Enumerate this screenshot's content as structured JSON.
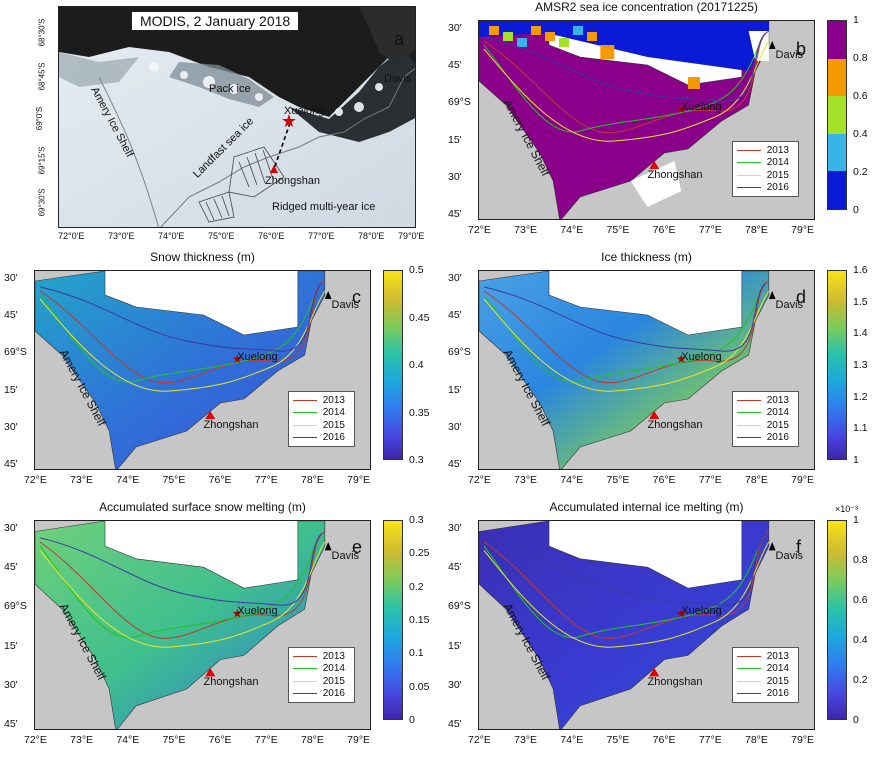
{
  "panels": {
    "a": {
      "letter": "a",
      "banner": "MODIS, 2 January 2018",
      "labels": {
        "pack_ice": "Pack ice",
        "amery": "Amery Ice Shelf",
        "landfast": "Landfast sea ice",
        "xuelong": "Xuelong",
        "zhongshan": "Zhongshan",
        "ridged": "Ridged multi-year ice",
        "davis": "Davis"
      },
      "lat_ticks": [
        "68°30'S",
        "68°45'S",
        "69°0'S",
        "69°15'S",
        "69°30'S"
      ],
      "lon_ticks": [
        "72°0'E",
        "73°0'E",
        "74°0'E",
        "75°0'E",
        "76°0'E",
        "77°0'E",
        "78°0'E",
        "79°0'E"
      ]
    },
    "b": {
      "letter": "b",
      "title": "AMSR2 sea ice concentration (20171225)",
      "colorbar": {
        "ticks": [
          "1",
          "0.8",
          "0.6",
          "0.4",
          "0.2",
          "0"
        ],
        "colors": [
          "#8B008B",
          "#F39A00",
          "#A6E12A",
          "#38B4E6",
          "#0A1AD6"
        ]
      }
    },
    "c": {
      "letter": "c",
      "title": "Snow thickness (m)",
      "colorbar": {
        "ticks": [
          "0.5",
          "0.45",
          "0.4",
          "0.35",
          "0.3"
        ]
      }
    },
    "d": {
      "letter": "d",
      "title": "Ice thickness (m)",
      "colorbar": {
        "ticks": [
          "1.6",
          "1.5",
          "1.4",
          "1.3",
          "1.2",
          "1.1",
          "1"
        ]
      }
    },
    "e": {
      "letter": "e",
      "title": "Accumulated surface snow melting (m)",
      "colorbar": {
        "ticks": [
          "0.3",
          "0.25",
          "0.2",
          "0.15",
          "0.1",
          "0.05",
          "0"
        ]
      }
    },
    "f": {
      "letter": "f",
      "title": "Accumulated internal ice melting (m)",
      "colorbar": {
        "ticks": [
          "1",
          "0.8",
          "0.6",
          "0.4",
          "0.2",
          "0"
        ],
        "exponent": "×10⁻³"
      }
    }
  },
  "common": {
    "lat_ticks": [
      "30'",
      "45'",
      "69°S",
      "15'",
      "30'",
      "45'"
    ],
    "lon_ticks": [
      "72°E",
      "73°E",
      "74°E",
      "75°E",
      "76°E",
      "77°E",
      "78°E",
      "79°E"
    ],
    "place_labels": {
      "xuelong": "Xuelong",
      "zhongshan": "Zhongshan",
      "davis": "Davis",
      "amery": "Amery Ice Shelf"
    },
    "legend_years": [
      "2013",
      "2014",
      "2015",
      "2016"
    ],
    "year_colors": [
      "#c0392b",
      "#22c422",
      "#e6e62a",
      "#3a3aa0"
    ]
  }
}
